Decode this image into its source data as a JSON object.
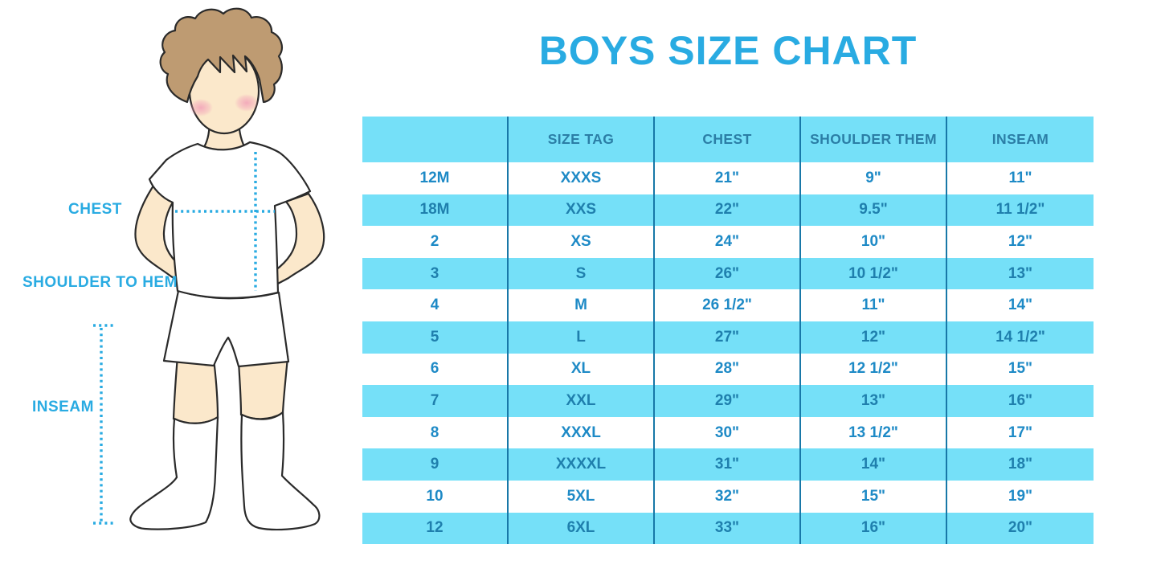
{
  "title": "BOYS SIZE CHART",
  "diagram": {
    "figure": "boy-in-tshirt-shorts-and-knee-socks",
    "chest_label": "CHEST",
    "shoulder_to_hem_label": "SHOULDER TO HEM",
    "inseam_label": "INSEAM"
  },
  "chart_data": {
    "type": "table",
    "title": "BOYS SIZE CHART",
    "columns": [
      "",
      "SIZE TAG",
      "CHEST",
      "SHOULDER THEM",
      "INSEAM"
    ],
    "rows": [
      [
        "12M",
        "XXXS",
        "21\"",
        "9\"",
        "11\""
      ],
      [
        "18M",
        "XXS",
        "22\"",
        "9.5\"",
        "11 1/2\""
      ],
      [
        "2",
        "XS",
        "24\"",
        "10\"",
        "12\""
      ],
      [
        "3",
        "S",
        "26\"",
        "10 1/2\"",
        "13\""
      ],
      [
        "4",
        "M",
        "26 1/2\"",
        "11\"",
        "14\""
      ],
      [
        "5",
        "L",
        "27\"",
        "12\"",
        "14 1/2\""
      ],
      [
        "6",
        "XL",
        "28\"",
        "12 1/2\"",
        "15\""
      ],
      [
        "7",
        "XXL",
        "29\"",
        "13\"",
        "16\""
      ],
      [
        "8",
        "XXXL",
        "30\"",
        "13 1/2\"",
        "17\""
      ],
      [
        "9",
        "XXXXL",
        "31\"",
        "14\"",
        "18\""
      ],
      [
        "10",
        "5XL",
        "32\"",
        "15\"",
        "19\""
      ],
      [
        "12",
        "6XL",
        "33\"",
        "16\"",
        "20\""
      ]
    ]
  },
  "colors": {
    "accent_blue": "#29ABE2",
    "row_highlight_blue": "#75E0F8",
    "header_text_blue": "#2B7EA6",
    "cell_text_blue": "#1E8AC6",
    "table_divider_blue": "#1878A8",
    "hair_brown": "#BE9B72",
    "skin_tone": "#FBE8CB",
    "cheek_pink": "#F2A0B8"
  }
}
